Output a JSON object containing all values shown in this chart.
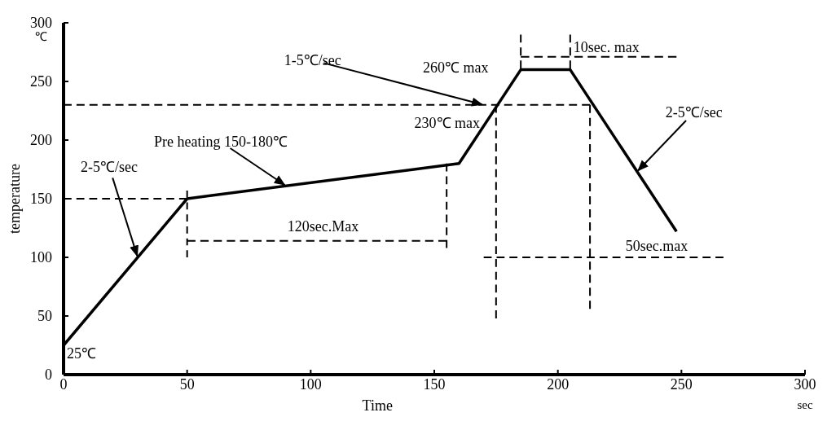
{
  "chart_data": {
    "type": "line",
    "xlabel": "Time",
    "ylabel": "temperature",
    "xlim": [
      0,
      300
    ],
    "ylim": [
      0,
      300
    ],
    "xticks": [
      0,
      50,
      100,
      150,
      200,
      250,
      300
    ],
    "yticks": [
      0,
      50,
      100,
      150,
      200,
      250,
      300
    ],
    "marker": "none",
    "line_style": "solid",
    "series": [
      {
        "color": "#000000",
        "x": [
          0,
          50,
          160,
          185,
          205,
          248
        ],
        "values": [
          25,
          150,
          180,
          260,
          260,
          122
        ]
      },
      {
        "color": "#000000",
        "line_style": "dashed",
        "x": [
          0,
          50
        ],
        "values": [
          150,
          150
        ]
      },
      {
        "color": "#000000",
        "line_style": "dashed",
        "x": [
          0,
          213
        ],
        "values": [
          230,
          230
        ]
      },
      {
        "color": "#000000",
        "line_style": "dashed",
        "x": [
          50,
          50
        ],
        "values": [
          157,
          100
        ]
      },
      {
        "color": "#000000",
        "line_style": "dashed",
        "x": [
          50,
          155
        ],
        "values": [
          114,
          114
        ]
      },
      {
        "color": "#000000",
        "line_style": "dashed",
        "x": [
          155,
          155
        ],
        "values": [
          180,
          108
        ]
      },
      {
        "color": "#000000",
        "line_style": "dashed",
        "x": [
          175,
          175
        ],
        "values": [
          230,
          48
        ]
      },
      {
        "color": "#000000",
        "line_style": "dashed",
        "x": [
          213,
          213
        ],
        "values": [
          230,
          56
        ]
      },
      {
        "color": "#000000",
        "line_style": "dashed",
        "x": [
          170,
          267
        ],
        "values": [
          100,
          100
        ]
      },
      {
        "color": "#000000",
        "line_style": "dashed",
        "x": [
          185,
          185
        ],
        "values": [
          290,
          261
        ]
      },
      {
        "color": "#000000",
        "line_style": "dashed",
        "x": [
          205,
          205
        ],
        "values": [
          290,
          261
        ]
      },
      {
        "color": "#000000",
        "line_style": "dashed",
        "x": [
          185,
          248
        ],
        "values": [
          271,
          271
        ]
      }
    ],
    "annotations": [
      {
        "text": "2-5℃/sec",
        "x": 30,
        "y": 100
      },
      {
        "text": "Pre heating 150-180℃",
        "x": 90,
        "y": 161
      },
      {
        "text": "1-5℃/sec",
        "x": 170,
        "y": 230
      },
      {
        "text": "260℃ max",
        "x": 185,
        "y": 260
      },
      {
        "text": "230℃ max",
        "x": 175,
        "y": 230
      },
      {
        "text": "10sec. max",
        "x": 205,
        "y": 271
      },
      {
        "text": "120sec.Max",
        "x": 105,
        "y": 114
      },
      {
        "text": "50sec.max",
        "x": 240,
        "y": 100
      },
      {
        "text": "2-5℃/sec",
        "x": 232,
        "y": 173
      },
      {
        "text": "25℃",
        "x": 0,
        "y": 25
      },
      "℃",
      "sec"
    ]
  }
}
